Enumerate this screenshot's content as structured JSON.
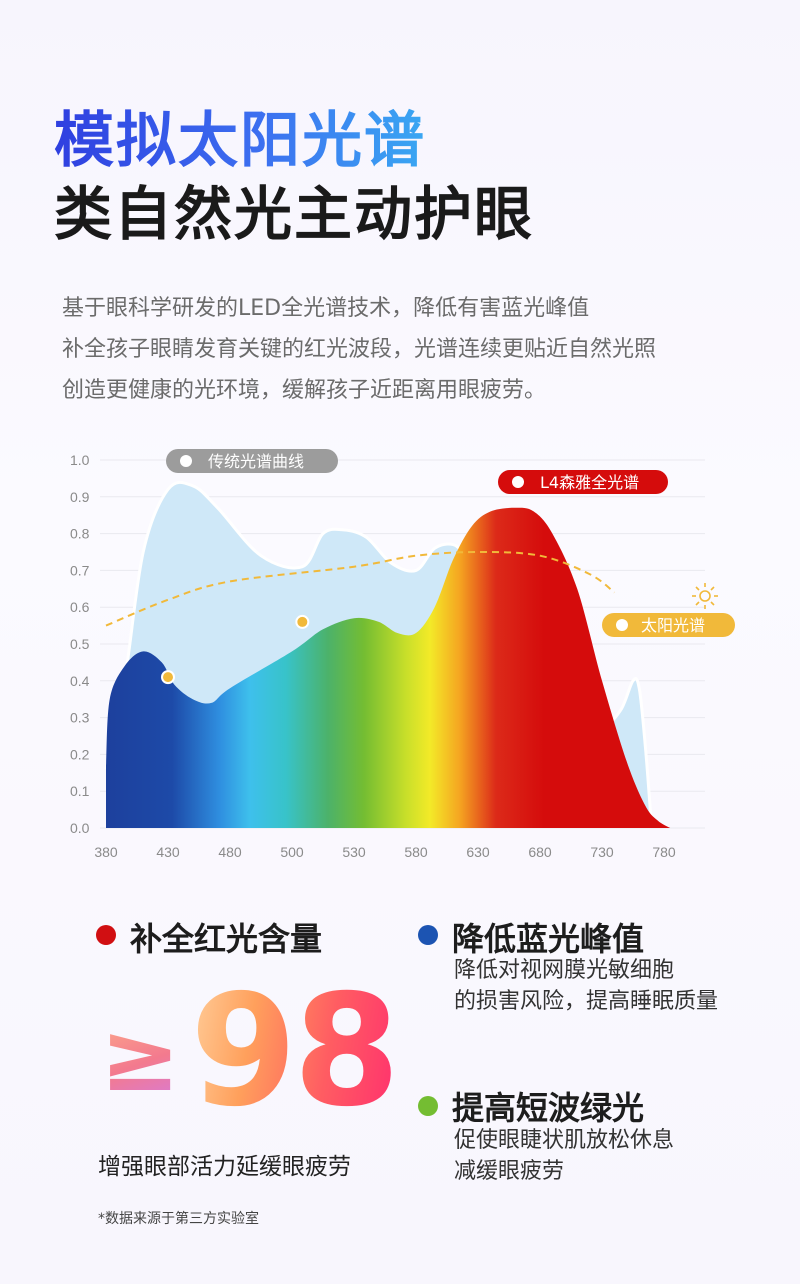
{
  "title_line1": "模拟太阳光谱",
  "title_line2": "类自然光主动护眼",
  "description": [
    "基于眼科学研发的LED全光谱技术，降低有害蓝光峰值",
    "补全孩子眼睛发育关键的红光波段，光谱连续更贴近自然光照",
    "创造更健康的光环境，缓解孩子近距离用眼疲劳。"
  ],
  "chart_data": {
    "type": "area",
    "x_ticks": [
      380,
      430,
      480,
      500,
      530,
      580,
      630,
      680,
      730,
      780
    ],
    "y_ticks": [
      "0.0",
      "0.1",
      "0.2",
      "0.3",
      "0.4",
      "0.5",
      "0.6",
      "0.7",
      "0.8",
      "0.9",
      "1.0"
    ],
    "ylim": [
      0,
      1.0
    ],
    "series": [
      {
        "name": "传统光谱曲线",
        "color": "#cfe8f8",
        "x": [
          380,
          395,
          410,
          430,
          450,
          470,
          490,
          505,
          515,
          525,
          540,
          560,
          580,
          595,
          610,
          620,
          630,
          650,
          670,
          690,
          710,
          730,
          745,
          755,
          760,
          765,
          770
        ],
        "y": [
          0.16,
          0.4,
          0.75,
          0.92,
          0.93,
          0.87,
          0.74,
          0.71,
          0.8,
          0.81,
          0.79,
          0.72,
          0.7,
          0.76,
          0.77,
          0.74,
          0.7,
          0.6,
          0.5,
          0.42,
          0.35,
          0.28,
          0.32,
          0.4,
          0.38,
          0.22,
          0.0
        ]
      },
      {
        "name": "L4森雅全光谱",
        "color": "#d90f0f",
        "x": [
          380,
          383,
          395,
          410,
          425,
          435,
          450,
          465,
          480,
          500,
          515,
          530,
          550,
          565,
          580,
          595,
          610,
          625,
          640,
          660,
          675,
          690,
          710,
          730,
          750,
          765,
          775,
          785
        ],
        "y": [
          0.17,
          0.35,
          0.44,
          0.48,
          0.45,
          0.39,
          0.35,
          0.34,
          0.38,
          0.48,
          0.54,
          0.57,
          0.56,
          0.53,
          0.53,
          0.6,
          0.73,
          0.82,
          0.86,
          0.87,
          0.86,
          0.8,
          0.65,
          0.4,
          0.18,
          0.06,
          0.02,
          0.0
        ]
      },
      {
        "name": "太阳光谱",
        "color": "#f1b93a",
        "x": [
          380,
          430,
          480,
          530,
          580,
          630,
          680,
          720,
          740
        ],
        "y": [
          0.55,
          0.62,
          0.67,
          0.71,
          0.74,
          0.75,
          0.74,
          0.69,
          0.64
        ]
      }
    ],
    "markers": [
      {
        "x": 430,
        "y": 0.41
      },
      {
        "x": 505,
        "y": 0.56
      }
    ]
  },
  "features": {
    "red": {
      "title": "补全红光含量",
      "stat_prefix": "≥",
      "stat_value": "98",
      "subtitle": "增强眼部活力延缓眼疲劳",
      "dot_color": "#d10f12"
    },
    "blue": {
      "title": "降低蓝光峰值",
      "lines": [
        "降低对视网膜光敏细胞",
        "的损害风险，提高睡眠质量"
      ],
      "dot_color": "#1c54b2"
    },
    "green": {
      "title": "提高短波绿光",
      "lines": [
        "促使眼睫状肌放松休息",
        "减缓眼疲劳"
      ],
      "dot_color": "#74bd32"
    }
  },
  "footnote": "*数据来源于第三方实验室"
}
